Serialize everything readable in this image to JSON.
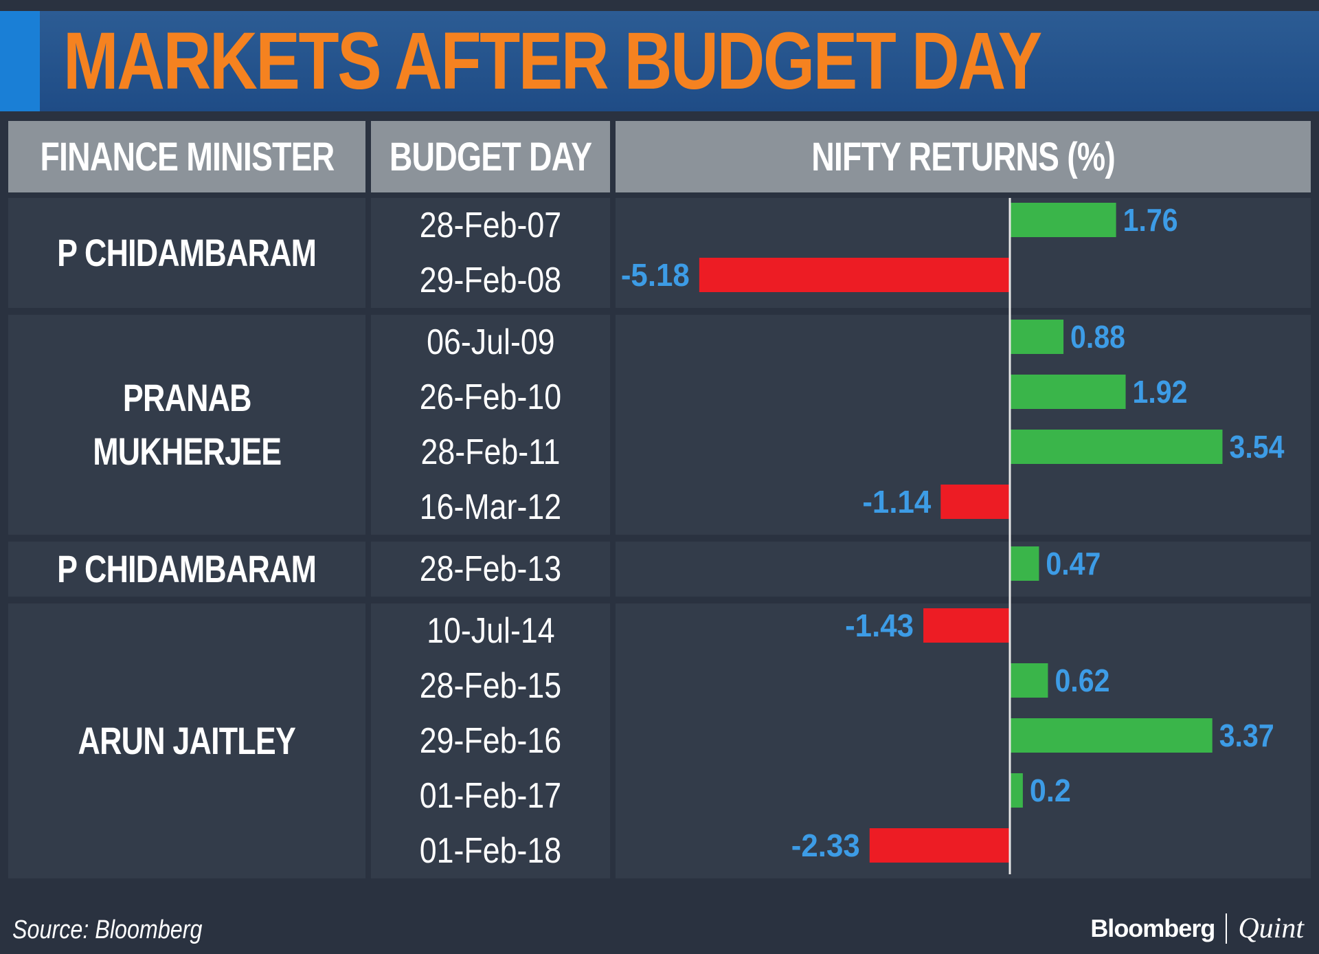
{
  "title": "MARKETS AFTER BUDGET DAY",
  "headers": {
    "minister": "FINANCE MINISTER",
    "budget_day": "BUDGET DAY",
    "returns": "NIFTY RETURNS (%)"
  },
  "groups": [
    {
      "minister": "P CHIDAMBARAM",
      "rows": 2
    },
    {
      "minister": "PRANAB\nMUKHERJEE",
      "rows": 4
    },
    {
      "minister": "P CHIDAMBARAM",
      "rows": 1
    },
    {
      "minister": "ARUN JAITLEY",
      "rows": 5
    }
  ],
  "source": "Source: Bloomberg",
  "logo": {
    "primary": "Bloomberg",
    "secondary": "Quint"
  },
  "colors": {
    "positive": "#3ab54a",
    "negative": "#ed1c24",
    "value_label": "#3d9ce6",
    "title": "#f58220"
  },
  "chart_data": {
    "type": "bar",
    "orientation": "horizontal",
    "title": "NIFTY RETURNS (%)",
    "categories": [
      "28-Feb-07",
      "29-Feb-08",
      "06-Jul-09",
      "26-Feb-10",
      "28-Feb-11",
      "16-Mar-12",
      "28-Feb-13",
      "10-Jul-14",
      "28-Feb-15",
      "29-Feb-16",
      "01-Feb-17",
      "01-Feb-18"
    ],
    "values": [
      1.76,
      -5.18,
      0.88,
      1.92,
      3.54,
      -1.14,
      0.47,
      -1.43,
      0.62,
      3.37,
      0.2,
      -2.33
    ],
    "labels": [
      "1.76",
      "-5.18",
      "0.88",
      "1.92",
      "3.54",
      "-1.14",
      "0.47",
      "-1.43",
      "0.62",
      "3.37",
      "0.2",
      "-2.33"
    ],
    "xlim": [
      -5.18,
      3.54
    ],
    "grid": false,
    "legend": "none"
  }
}
